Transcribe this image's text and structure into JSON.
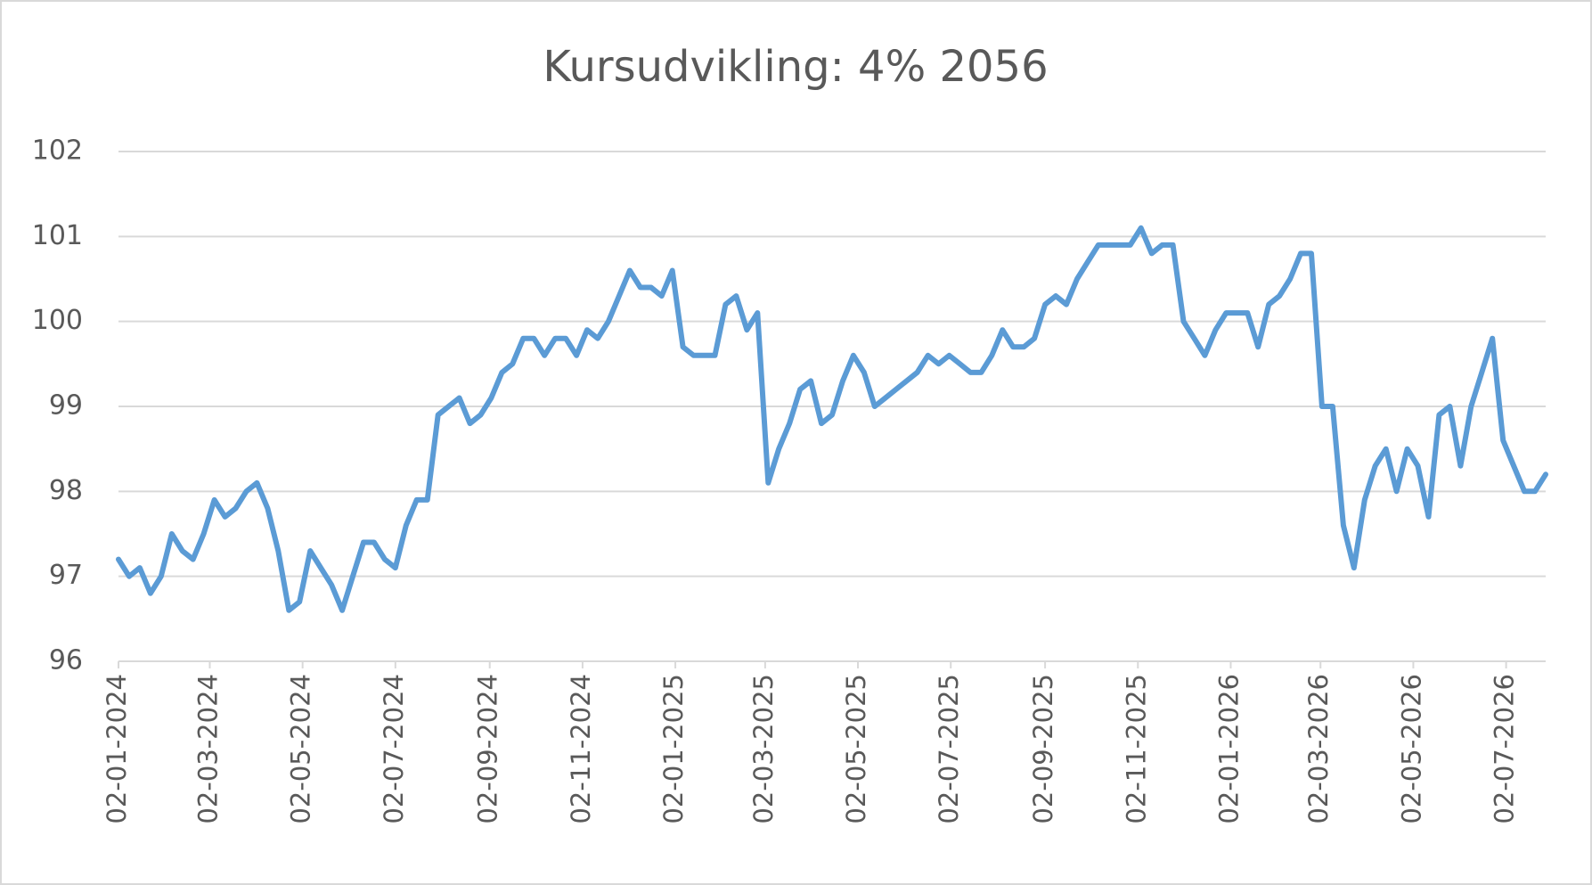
{
  "chart_data": {
    "type": "line",
    "title": "Kursudvikling: 4% 2056",
    "x": [
      "02-01-2024",
      "09-01-2024",
      "16-01-2024",
      "23-01-2024",
      "30-01-2024",
      "06-02-2024",
      "13-02-2024",
      "20-02-2024",
      "27-02-2024",
      "05-03-2024",
      "12-03-2024",
      "19-03-2024",
      "26-03-2024",
      "02-04-2024",
      "09-04-2024",
      "16-04-2024",
      "23-04-2024",
      "30-04-2024",
      "07-05-2024",
      "14-05-2024",
      "21-05-2024",
      "28-05-2024",
      "04-06-2024",
      "11-06-2024",
      "18-06-2024",
      "25-06-2024",
      "02-07-2024",
      "09-07-2024",
      "16-07-2024",
      "23-07-2024",
      "30-07-2024",
      "06-08-2024",
      "13-08-2024",
      "20-08-2024",
      "27-08-2024",
      "03-09-2024",
      "10-09-2024",
      "17-09-2024",
      "24-09-2024",
      "01-10-2024",
      "08-10-2024",
      "15-10-2024",
      "22-10-2024",
      "29-10-2024",
      "05-11-2024",
      "12-11-2024",
      "19-11-2024",
      "26-11-2024",
      "03-12-2024",
      "10-12-2024",
      "17-12-2024",
      "24-12-2024",
      "31-12-2024",
      "07-01-2025",
      "14-01-2025",
      "21-01-2025",
      "28-01-2025",
      "04-02-2025",
      "11-02-2025",
      "18-02-2025",
      "25-02-2025",
      "04-03-2025",
      "11-03-2025",
      "18-03-2025",
      "25-03-2025",
      "01-04-2025",
      "08-04-2025",
      "15-04-2025",
      "22-04-2025",
      "29-04-2025",
      "06-05-2025",
      "13-05-2025",
      "20-05-2025",
      "27-05-2025",
      "03-06-2025",
      "10-06-2025",
      "17-06-2025",
      "24-06-2025",
      "01-07-2025",
      "08-07-2025",
      "15-07-2025",
      "22-07-2025",
      "29-07-2025",
      "05-08-2025",
      "12-08-2025",
      "19-08-2025",
      "26-08-2025",
      "02-09-2025",
      "09-09-2025",
      "16-09-2025",
      "23-09-2025",
      "30-09-2025",
      "07-10-2025",
      "14-10-2025",
      "21-10-2025",
      "28-10-2025",
      "04-11-2025",
      "11-11-2025",
      "18-11-2025",
      "25-11-2025",
      "02-12-2025",
      "09-12-2025",
      "16-12-2025",
      "23-12-2025",
      "30-12-2025",
      "06-01-2026",
      "13-01-2026",
      "20-01-2026",
      "27-01-2026",
      "03-02-2026",
      "10-02-2026",
      "17-02-2026",
      "24-02-2026",
      "03-03-2026",
      "10-03-2026",
      "17-03-2026",
      "24-03-2026",
      "31-03-2026",
      "07-04-2026",
      "14-04-2026",
      "21-04-2026",
      "28-04-2026",
      "05-05-2026",
      "12-05-2026",
      "19-05-2026",
      "26-05-2026",
      "02-06-2026",
      "09-06-2026",
      "16-06-2026",
      "23-06-2026",
      "30-06-2026",
      "07-07-2026",
      "14-07-2026",
      "21-07-2026",
      "28-07-2026"
    ],
    "values": [
      97.2,
      97.0,
      97.1,
      96.8,
      97.0,
      97.5,
      97.3,
      97.2,
      97.5,
      97.9,
      97.7,
      97.8,
      98.0,
      98.1,
      97.8,
      97.3,
      96.6,
      96.7,
      97.3,
      97.1,
      96.9,
      96.6,
      97.0,
      97.4,
      97.4,
      97.2,
      97.1,
      97.6,
      97.9,
      97.9,
      98.9,
      99.0,
      99.1,
      98.8,
      98.9,
      99.1,
      99.4,
      99.5,
      99.8,
      99.8,
      99.6,
      99.8,
      99.8,
      99.6,
      99.9,
      99.8,
      100.0,
      100.3,
      100.6,
      100.4,
      100.4,
      100.3,
      100.6,
      99.7,
      99.6,
      99.6,
      99.6,
      100.2,
      100.3,
      99.9,
      100.1,
      98.1,
      98.5,
      98.8,
      99.2,
      99.3,
      98.8,
      98.9,
      99.3,
      99.6,
      99.4,
      99.0,
      99.1,
      99.2,
      99.3,
      99.4,
      99.6,
      99.5,
      99.6,
      99.5,
      99.4,
      99.4,
      99.6,
      99.9,
      99.7,
      99.7,
      99.8,
      100.2,
      100.3,
      100.2,
      100.5,
      100.7,
      100.9,
      100.9,
      100.9,
      100.9,
      101.1,
      100.8,
      100.9,
      100.9,
      100.0,
      99.8,
      99.6,
      99.9,
      100.1,
      100.1,
      100.1,
      99.7,
      100.2,
      100.3,
      100.5,
      100.8,
      100.8,
      99.0,
      99.0,
      97.6,
      97.1,
      97.9,
      98.3,
      98.5,
      98.0,
      98.5,
      98.3,
      97.7,
      98.9,
      99.0,
      98.3,
      99.0,
      99.4,
      99.8,
      98.6,
      98.3,
      98.0,
      98.0,
      98.2
    ],
    "color": "#5b9bd5",
    "xlim": [
      "02-01-2024",
      "28-07-2026"
    ],
    "xticks": [
      "02-01-2024",
      "02-03-2024",
      "02-05-2024",
      "02-07-2024",
      "02-09-2024",
      "02-11-2024",
      "02-01-2025",
      "02-03-2025",
      "02-05-2025",
      "02-07-2025",
      "02-09-2025",
      "02-11-2025",
      "02-01-2026",
      "02-03-2026",
      "02-05-2026",
      "02-07-2026"
    ],
    "ylim": [
      96,
      102
    ],
    "yticks": [
      96,
      97,
      98,
      99,
      100,
      101,
      102
    ],
    "grid": true
  }
}
